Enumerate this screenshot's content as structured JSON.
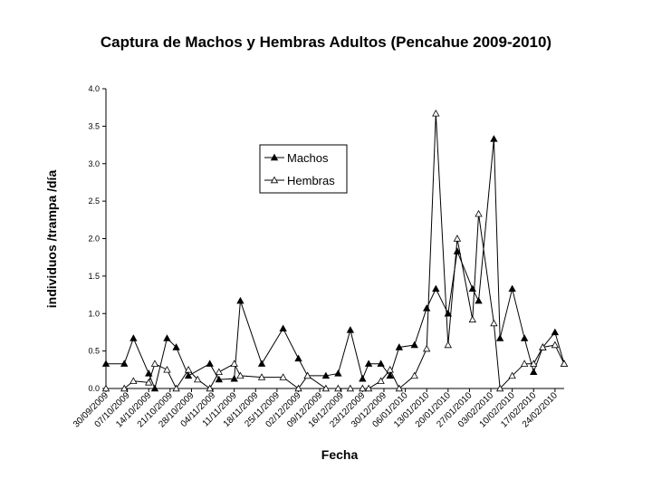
{
  "chart_data": {
    "type": "line",
    "title": "Captura de Machos y Hembras Adultos (Pencahue 2009-2010)",
    "x_label": "Fecha",
    "y_label": "individuos /trampa /día",
    "xlim": [
      "30/09/2009",
      "27/02/2010"
    ],
    "xticks": [
      "30/09/2009",
      "07/10/2009",
      "14/10/2009",
      "21/10/2009",
      "28/10/2009",
      "04/11/2009",
      "11/11/2009",
      "18/11/2009",
      "25/11/2009",
      "02/12/2009",
      "09/12/2009",
      "16/12/2009",
      "23/12/2009",
      "30/12/2009",
      "06/01/2010",
      "13/01/2010",
      "20/01/2010",
      "27/01/2010",
      "03/02/2010",
      "10/02/2010",
      "17/02/2010",
      "24/02/2010"
    ],
    "ylim": [
      0,
      4
    ],
    "yticks": [
      {
        "value": 0,
        "label": "0.0"
      },
      {
        "value": 0.5,
        "label": "0.5"
      },
      {
        "value": 1,
        "label": "1.0"
      },
      {
        "value": 1.5,
        "label": "1.5"
      },
      {
        "value": 2,
        "label": "2.0"
      },
      {
        "value": 2.5,
        "label": "2.5"
      },
      {
        "value": 3,
        "label": "3.0"
      },
      {
        "value": 3.5,
        "label": "3.5"
      },
      {
        "value": 4,
        "label": "4.0"
      }
    ],
    "legend": "upper center",
    "series": [
      {
        "name": "Machos",
        "color": "#000000",
        "marker": "filled",
        "x": [
          "30/09/2009",
          "06/10/2009",
          "09/10/2009",
          "14/10/2009",
          "16/10/2009",
          "20/10/2009",
          "23/10/2009",
          "27/10/2009",
          "03/11/2009",
          "06/11/2009",
          "11/11/2009",
          "13/11/2009",
          "20/11/2009",
          "27/11/2009",
          "02/12/2009",
          "05/12/2009",
          "11/12/2009",
          "15/12/2009",
          "19/12/2009",
          "23/12/2009",
          "25/12/2009",
          "29/12/2009",
          "01/01/2010",
          "04/01/2010",
          "09/01/2010",
          "13/01/2010",
          "16/01/2010",
          "20/01/2010",
          "23/01/2010",
          "28/01/2010",
          "30/01/2010",
          "04/02/2010",
          "06/02/2010",
          "10/02/2010",
          "14/02/2010",
          "17/02/2010",
          "20/02/2010",
          "24/02/2010",
          "27/02/2010"
        ],
        "values": [
          0.33,
          0.33,
          0.67,
          0.2,
          0,
          0.67,
          0.55,
          0.17,
          0.33,
          0.12,
          0.13,
          1.17,
          0.33,
          0.8,
          0.4,
          0.17,
          0.17,
          0.2,
          0.78,
          0.13,
          0.33,
          0.33,
          0.17,
          0.55,
          0.58,
          1.07,
          1.33,
          1.0,
          1.83,
          1.33,
          1.17,
          3.33,
          0.67,
          1.33,
          0.67,
          0.22,
          0.55,
          0.75,
          0.33
        ]
      },
      {
        "name": "Hembras",
        "color": "#000000",
        "marker": "open",
        "x": [
          "30/09/2009",
          "06/10/2009",
          "09/10/2009",
          "14/10/2009",
          "16/10/2009",
          "20/10/2009",
          "23/10/2009",
          "27/10/2009",
          "30/10/2009",
          "03/11/2009",
          "06/11/2009",
          "11/11/2009",
          "13/11/2009",
          "20/11/2009",
          "27/11/2009",
          "02/12/2009",
          "05/12/2009",
          "11/12/2009",
          "15/12/2009",
          "19/12/2009",
          "23/12/2009",
          "25/12/2009",
          "29/12/2009",
          "01/01/2010",
          "04/01/2010",
          "09/01/2010",
          "13/01/2010",
          "16/01/2010",
          "20/01/2010",
          "23/01/2010",
          "28/01/2010",
          "30/01/2010",
          "04/02/2010",
          "06/02/2010",
          "10/02/2010",
          "14/02/2010",
          "17/02/2010",
          "20/02/2010",
          "24/02/2010",
          "27/02/2010"
        ],
        "values": [
          0,
          0,
          0.1,
          0.08,
          0.33,
          0.25,
          0,
          0.25,
          0.12,
          0,
          0.22,
          0.33,
          0.17,
          0.15,
          0.15,
          0,
          0.17,
          0,
          0,
          0,
          0,
          0,
          0.1,
          0.25,
          0,
          0.17,
          0.53,
          3.67,
          0.58,
          2.0,
          0.92,
          2.33,
          0.87,
          0,
          0.17,
          0.33,
          0.33,
          0.55,
          0.58,
          0.33
        ]
      }
    ]
  }
}
